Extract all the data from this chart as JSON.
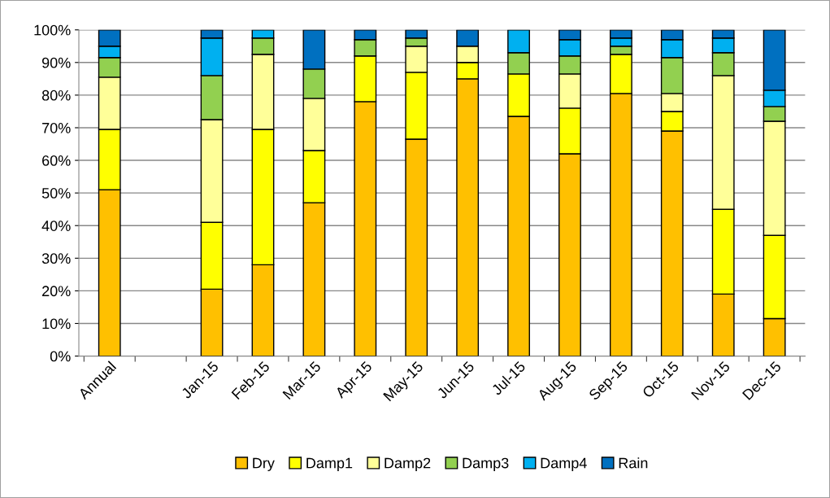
{
  "chart_data": {
    "type": "bar",
    "stacked": true,
    "categories": [
      "Annual",
      null,
      "Jan-15",
      "Feb-15",
      "Mar-15",
      "Apr-15",
      "May-15",
      "Jun-15",
      "Jul-15",
      "Aug-15",
      "Sep-15",
      "Oct-15",
      "Nov-15",
      "Dec-15"
    ],
    "series": [
      {
        "name": "Dry",
        "color": "#ffc000",
        "values": [
          51,
          null,
          20.5,
          28,
          47,
          78,
          66.5,
          85,
          73.5,
          62,
          80.5,
          69,
          19,
          11.5
        ]
      },
      {
        "name": "Damp1",
        "color": "#ffff00",
        "values": [
          18.5,
          null,
          20.5,
          41.5,
          16,
          14,
          20.5,
          5,
          13,
          14,
          12,
          6,
          26,
          25.5
        ]
      },
      {
        "name": "Damp2",
        "color": "#ffff99",
        "values": [
          16,
          null,
          31.5,
          23,
          16,
          null,
          8,
          5,
          null,
          10.5,
          null,
          5.5,
          41,
          35
        ]
      },
      {
        "name": "Damp3",
        "color": "#92d050",
        "values": [
          6,
          null,
          13.5,
          5,
          9,
          5,
          2.5,
          null,
          6.5,
          5.5,
          2.5,
          11,
          7,
          4.5
        ]
      },
      {
        "name": "Damp4",
        "color": "#00b0f0",
        "values": [
          3.5,
          null,
          11.5,
          2.5,
          null,
          null,
          null,
          null,
          7,
          5,
          2.5,
          5.5,
          4.5,
          5
        ]
      },
      {
        "name": "Rain",
        "color": "#0070c0",
        "values": [
          5,
          null,
          2.5,
          null,
          12,
          3,
          2.5,
          5,
          null,
          3,
          2.5,
          3,
          2.5,
          18.5
        ]
      }
    ],
    "ylim": [
      0,
      100
    ],
    "yticks": [
      {
        "value": 0,
        "label": "0%"
      },
      {
        "value": 10,
        "label": "10%"
      },
      {
        "value": 20,
        "label": "20%"
      },
      {
        "value": 30,
        "label": "30%"
      },
      {
        "value": 40,
        "label": "40%"
      },
      {
        "value": 50,
        "label": "50%"
      },
      {
        "value": 60,
        "label": "60%"
      },
      {
        "value": 70,
        "label": "70%"
      },
      {
        "value": 80,
        "label": "80%"
      },
      {
        "value": 90,
        "label": "90%"
      },
      {
        "value": 100,
        "label": "100%"
      }
    ],
    "grid": "y",
    "legend": "bottom"
  }
}
